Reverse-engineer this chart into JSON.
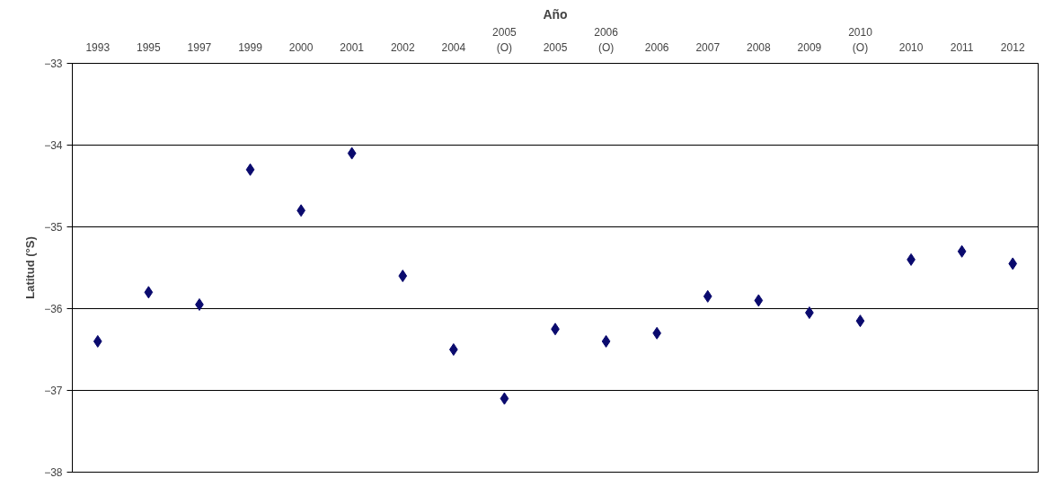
{
  "chart_data": {
    "type": "scatter",
    "xlabel": "Año",
    "ylabel": "Latitud (°S)",
    "categories": [
      "1993",
      "1995",
      "1997",
      "1999",
      "2000",
      "2001",
      "2002",
      "2004",
      "2005\n(O)",
      "2005",
      "2006\n(O)",
      "2006",
      "2007",
      "2008",
      "2009",
      "2010\n(O)",
      "2010",
      "2011",
      "2012"
    ],
    "series": [
      {
        "color": "#0a0a6e",
        "values": [
          -36.4,
          -35.8,
          -35.95,
          -34.3,
          -34.8,
          -34.1,
          -35.6,
          -36.5,
          -37.1,
          -36.25,
          -36.4,
          -36.3,
          -35.85,
          -35.9,
          -36.05,
          -36.15,
          -35.4,
          -35.3,
          -35.45
        ]
      }
    ],
    "ylim": [
      -38,
      -33
    ],
    "yticks": [
      -38,
      -37,
      -36,
      -35,
      -34,
      -33
    ],
    "grid": "y",
    "marker": "diamond"
  }
}
